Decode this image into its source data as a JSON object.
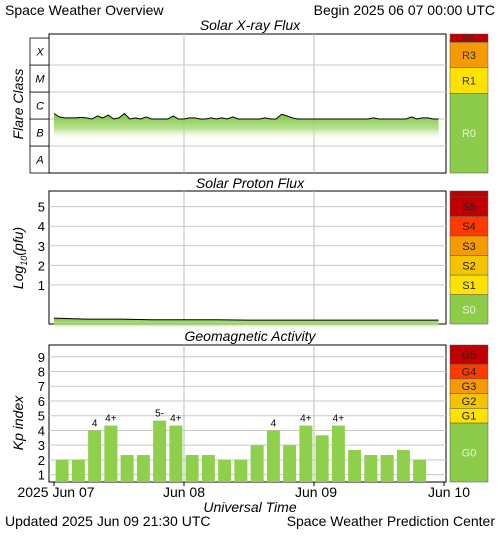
{
  "header": {
    "title": "Space Weather Overview",
    "begin": "Begin 2025 06 07 00:00 UTC"
  },
  "footer": {
    "updated": "Updated 2025 Jun 09 21:30 UTC",
    "center": "Space Weather Prediction Center"
  },
  "colors": {
    "green_fill": "#8ecf4c",
    "scale_green": "#8ccc4a",
    "level_1": "#ffe200",
    "level_2": "#f5c400",
    "level_3": "#f59b00",
    "level_4": "#ff3a00",
    "level_5": "#c00000",
    "grid": "#c8c8c8"
  },
  "chart_data": [
    {
      "type": "area",
      "title": "Solar X-ray Flux",
      "ylabel": "Flare Class",
      "y_scale": "log",
      "y_categories": [
        "A",
        "B",
        "C",
        "M",
        "X"
      ],
      "ylim": [
        1e-08,
        0.001
      ],
      "xlim": [
        "2025-06-07 00:00",
        "2025-06-10 00:00"
      ],
      "xlabel": "Universal Time",
      "x_ticks": [
        "2025 Jun 07",
        "Jun 08",
        "Jun 09",
        "Jun 10"
      ],
      "series": [
        {
          "x_hours": [
            0,
            1,
            2,
            3,
            4,
            5,
            6,
            7,
            8,
            9,
            10,
            11,
            12,
            13,
            14,
            15,
            16,
            17,
            18,
            19,
            20,
            21,
            22,
            23,
            24,
            25,
            26,
            27,
            28,
            29,
            30,
            31,
            32,
            33,
            34,
            35,
            36,
            37,
            38,
            39,
            40,
            41,
            42,
            43,
            44,
            45,
            46,
            47,
            48,
            49,
            50,
            51,
            52,
            53,
            54,
            55,
            56,
            57,
            58,
            59,
            60,
            61,
            62,
            63,
            64,
            65,
            66,
            67,
            68,
            69,
            70,
            71
          ],
          "values": [
            1.6e-06,
            1.2e-06,
            1.1e-06,
            1.1e-06,
            1.1e-06,
            1.15e-06,
            1.1e-06,
            1e-06,
            1.3e-06,
            1.1e-06,
            1.4e-06,
            1e-06,
            1.1e-06,
            1.6e-06,
            1e-06,
            1.1e-06,
            1e-06,
            1.2e-06,
            1e-06,
            1e-06,
            1e-06,
            1e-06,
            1.3e-06,
            1e-06,
            1e-06,
            1.1e-06,
            1.1e-06,
            1e-06,
            1e-06,
            1.1e-06,
            1e-06,
            1.1e-06,
            1e-06,
            1.2e-06,
            1e-06,
            1e-06,
            1e-06,
            1e-06,
            1e-06,
            1.1e-06,
            1e-06,
            1e-06,
            1.5e-06,
            1.3e-06,
            1.1e-06,
            1e-06,
            1e-06,
            1e-06,
            1e-06,
            1e-06,
            1e-06,
            1e-06,
            1e-06,
            1e-06,
            1e-06,
            1e-06,
            1e-06,
            1e-06,
            1e-06,
            1.1e-06,
            1e-06,
            1e-06,
            1e-06,
            1e-06,
            1e-06,
            1e-06,
            1.2e-06,
            1e-06,
            1.1e-06,
            1.1e-06,
            1e-06,
            1e-06
          ]
        }
      ],
      "scale": [
        "R0",
        "R1",
        "R3",
        "R5"
      ]
    },
    {
      "type": "area",
      "title": "Solar Proton Flux",
      "ylabel": "Log10(pfu)",
      "ylabel_parts": [
        "Log",
        "10",
        "(pfu)"
      ],
      "yticks": [
        "1",
        "2",
        "3",
        "4",
        "5"
      ],
      "ylim": [
        -1,
        5.8
      ],
      "xlim": [
        "2025-06-07 00:00",
        "2025-06-10 00:00"
      ],
      "series": [
        {
          "x_hours": [
            0,
            6,
            12,
            18,
            24,
            30,
            36,
            42,
            48,
            54,
            60,
            66,
            71
          ],
          "values": [
            -0.7,
            -0.75,
            -0.75,
            -0.78,
            -0.78,
            -0.78,
            -0.8,
            -0.8,
            -0.8,
            -0.8,
            -0.8,
            -0.8,
            -0.8
          ]
        }
      ],
      "scale": [
        "S0",
        "S1",
        "S2",
        "S3",
        "S4",
        "S5"
      ]
    },
    {
      "type": "bar",
      "title": "Geomagnetic Activity",
      "ylabel": "Kp index",
      "yticks": [
        "1",
        "2",
        "3",
        "4",
        "5",
        "6",
        "7",
        "8",
        "9"
      ],
      "ylim": [
        0.5,
        9.8
      ],
      "xlim": [
        "2025-06-07 00:00",
        "2025-06-10 00:00"
      ],
      "xlabel": "Universal Time",
      "x_ticks": [
        "2025 Jun 07",
        "Jun 08",
        "Jun 09",
        "Jun 10"
      ],
      "bar_hours": [
        0,
        3,
        6,
        9,
        12,
        15,
        18,
        21,
        24,
        27,
        30,
        33,
        36,
        39,
        42,
        45,
        48,
        51,
        54,
        57,
        60,
        63,
        66
      ],
      "values": [
        2.0,
        2.0,
        4.0,
        4.33,
        2.33,
        2.33,
        4.67,
        4.33,
        2.33,
        2.33,
        2.0,
        2.0,
        3.0,
        4.0,
        3.0,
        4.33,
        3.67,
        4.33,
        2.67,
        2.33,
        2.33,
        2.67,
        2.0
      ],
      "data_labels": [
        "",
        "",
        "4",
        "4+",
        "",
        "",
        "5-",
        "4+",
        "",
        "",
        "",
        "",
        "",
        "4",
        "",
        "4+",
        "",
        "4+",
        "",
        "",
        "",
        "",
        ""
      ],
      "scale": [
        "G0",
        "G1",
        "G2",
        "G3",
        "G4",
        "G5"
      ]
    }
  ]
}
